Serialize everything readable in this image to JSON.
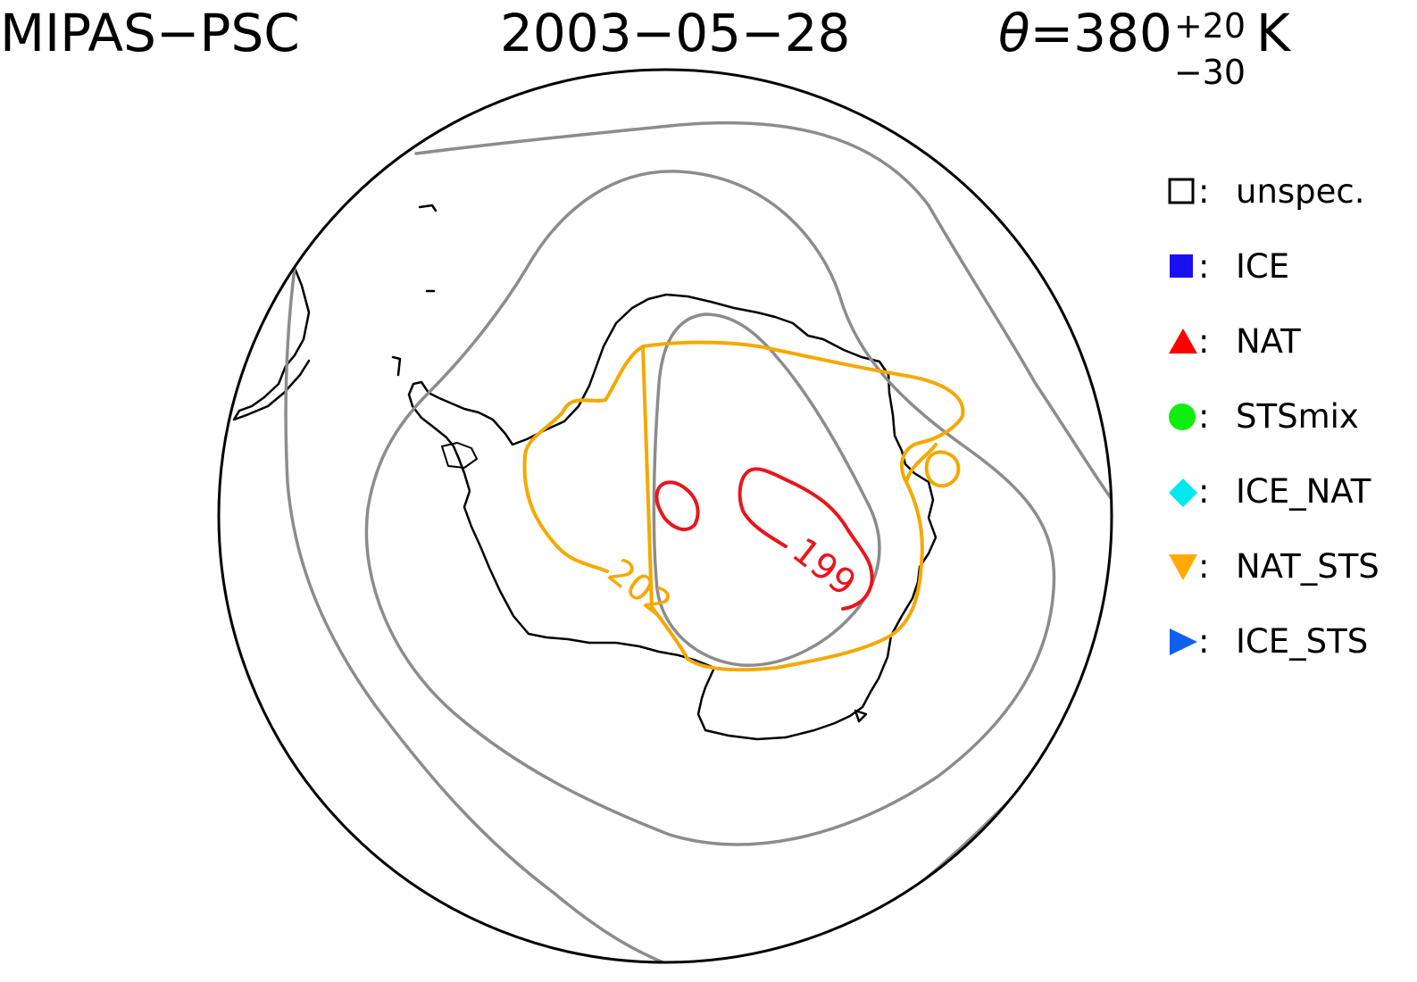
{
  "header": {
    "instrument": "MIPAS−PSC",
    "date": "2003−05−28",
    "theta_symbol": "θ",
    "theta_equals": "=380",
    "theta_plus": "+20",
    "theta_minus": "−30",
    "theta_unit": "K"
  },
  "legend": {
    "items": [
      {
        "label": "unspec.",
        "marker": "square-open",
        "color": "#000000"
      },
      {
        "label": "ICE",
        "marker": "square-filled",
        "color": "#1a0ff0"
      },
      {
        "label": "NAT",
        "marker": "triangle-up",
        "color": "#ff0000"
      },
      {
        "label": "STSmix",
        "marker": "circle",
        "color": "#10ee10"
      },
      {
        "label": "ICE_NAT",
        "marker": "diamond",
        "color": "#00e8f0"
      },
      {
        "label": "NAT_STS",
        "marker": "triangle-down",
        "color": "#ffaa00"
      },
      {
        "label": "ICE_STS",
        "marker": "triangle-right",
        "color": "#1060f0"
      }
    ],
    "colon": ":"
  },
  "contours": {
    "labels": [
      {
        "text": "202",
        "color": "#f5a800"
      },
      {
        "text": "199",
        "color": "#e8161e"
      }
    ],
    "colors": {
      "gray": "#8c8c8c",
      "orange": "#f5a800",
      "red": "#e8161e"
    }
  }
}
